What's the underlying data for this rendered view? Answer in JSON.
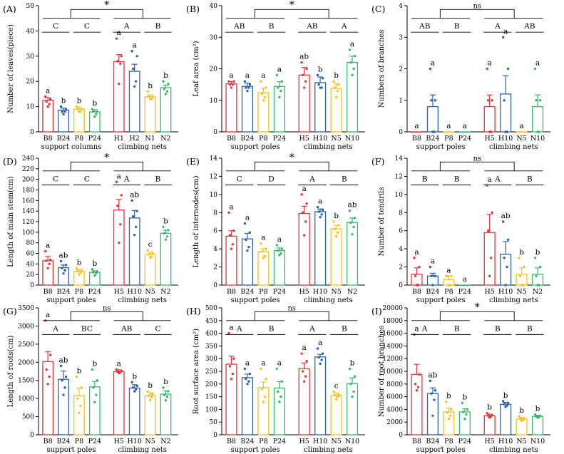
{
  "colors": {
    "red": "#e8343c",
    "blue": "#2f63a8",
    "yellow": "#f5c221",
    "green": "#39b86b"
  },
  "chart_data": [
    {
      "panel": "(A)",
      "type": "bar",
      "ylabel": "Number of leaves(piece)",
      "ylim": [
        0,
        50
      ],
      "yticks": [
        0,
        10,
        20,
        30,
        40,
        50
      ],
      "categories": [
        "B8",
        "B24",
        "P8",
        "P24",
        "H1",
        "H2",
        "N1",
        "N2"
      ],
      "values": [
        12.5,
        8.6,
        9.0,
        7.9,
        27.8,
        24.0,
        13.9,
        17.5
      ],
      "errors": [
        1.0,
        0.8,
        0.8,
        0.9,
        2.8,
        2.8,
        0.8,
        1.0
      ],
      "points": [
        [
          14,
          13,
          12,
          11,
          10
        ],
        [
          10,
          9,
          8,
          8,
          7
        ],
        [
          10,
          9,
          9,
          8,
          8
        ],
        [
          9,
          8,
          8,
          7,
          6
        ],
        [
          37,
          30,
          28,
          27,
          19
        ],
        [
          32,
          30,
          25,
          20,
          18
        ],
        [
          16,
          14,
          14,
          13,
          13
        ],
        [
          20,
          19,
          17,
          16,
          15
        ]
      ],
      "letters": [
        "a",
        "b",
        "b",
        "b",
        "a",
        "a",
        "b",
        "b"
      ],
      "groups": [
        "support columns",
        "climbing nets"
      ],
      "group_letters": [
        "C",
        "C",
        "A",
        "B"
      ],
      "sig": "*"
    },
    {
      "panel": "(B)",
      "type": "bar",
      "ylabel": "Leaf area (cm²)",
      "ylim": [
        0,
        40
      ],
      "yticks": [
        0,
        10,
        20,
        30,
        40
      ],
      "categories": [
        "B8",
        "B24",
        "P8",
        "P24",
        "H5",
        "H10",
        "N5",
        "N10"
      ],
      "values": [
        15.2,
        14.4,
        12.4,
        14.4,
        18.0,
        15.6,
        13.8,
        22.0
      ],
      "errors": [
        0.7,
        1.0,
        1.4,
        1.5,
        2.4,
        1.8,
        1.5,
        2.0
      ],
      "points": [
        [
          16,
          16,
          15,
          15,
          14
        ],
        [
          16,
          15,
          14,
          14,
          13
        ],
        [
          16,
          14,
          12,
          11,
          10
        ],
        [
          18,
          16,
          14,
          13,
          11
        ],
        [
          22,
          20,
          18,
          16,
          14
        ],
        [
          18,
          17,
          15,
          14,
          14
        ],
        [
          16,
          15,
          14,
          13,
          11
        ],
        [
          26,
          24,
          22,
          20,
          18
        ]
      ],
      "letters": [
        "a",
        "a",
        "a",
        "a",
        "ab",
        "b",
        "b",
        "a"
      ],
      "groups": [
        "support poles",
        "climbing nets"
      ],
      "group_letters": [
        "AB",
        "B",
        "AB",
        "A"
      ],
      "sig": "*"
    },
    {
      "panel": "(C)",
      "type": "bar",
      "ylabel": "Numbers of branches",
      "ylim": [
        0,
        4
      ],
      "yticks": [
        0,
        1,
        2,
        3,
        4
      ],
      "categories": [
        "B8",
        "B24",
        "P8",
        "P24",
        "H5",
        "H10",
        "N5",
        "N10"
      ],
      "values": [
        0,
        0.8,
        0,
        0,
        0.8,
        1.2,
        0,
        0.8
      ],
      "errors": [
        0,
        0.37,
        0,
        0,
        0.37,
        0.58,
        0,
        0.37
      ],
      "points": [
        [],
        [
          2,
          1,
          1,
          0,
          0
        ],
        [],
        [],
        [
          2,
          1,
          1,
          0,
          0
        ],
        [
          3,
          2,
          1,
          0,
          0
        ],
        [],
        [
          2,
          1,
          1,
          0,
          0
        ]
      ],
      "letters": [
        "a",
        "a",
        "a",
        "a",
        "a",
        "a",
        "a",
        "a"
      ],
      "groups": [
        "support poles",
        "climbing nets"
      ],
      "group_letters": [
        "AB",
        "B",
        "A",
        "AB"
      ],
      "sig": "ns"
    },
    {
      "panel": "(D)",
      "type": "bar",
      "ylabel": "Length of main stem(cm)",
      "ylim": [
        0,
        240
      ],
      "yticks": [
        0,
        20,
        40,
        60,
        80,
        100,
        120,
        140,
        160,
        180,
        200,
        220,
        240
      ],
      "categories": [
        "B8",
        "B24",
        "P8",
        "P24",
        "H5",
        "H10",
        "N5",
        "N2"
      ],
      "values": [
        46,
        33,
        26,
        24,
        142,
        127,
        58,
        98
      ],
      "errors": [
        8,
        5,
        3,
        3,
        20,
        14,
        4,
        6
      ],
      "points": [
        [
          64,
          48,
          46,
          40,
          32
        ],
        [
          45,
          38,
          32,
          28,
          22
        ],
        [
          32,
          28,
          26,
          24,
          20
        ],
        [
          30,
          26,
          24,
          22,
          18
        ],
        [
          195,
          170,
          150,
          115,
          80
        ],
        [
          160,
          140,
          130,
          110,
          95
        ],
        [
          66,
          60,
          58,
          54,
          52
        ],
        [
          110,
          104,
          98,
          92,
          86
        ]
      ],
      "letters": [
        "a",
        "ab",
        "b",
        "b",
        "a",
        "ab",
        "c",
        "b"
      ],
      "groups": [
        "support poles",
        "climbing nets"
      ],
      "group_letters": [
        "C",
        "C",
        "A",
        "B"
      ],
      "sig": "*"
    },
    {
      "panel": "(E)",
      "type": "bar",
      "ylabel": "Length of internodes(cm)",
      "ylim": [
        0,
        14
      ],
      "yticks": [
        0,
        2,
        4,
        6,
        8,
        10,
        12,
        14
      ],
      "categories": [
        "B8",
        "B24",
        "P8",
        "P24",
        "H5",
        "H10",
        "N5",
        "N2"
      ],
      "values": [
        5.4,
        5.1,
        3.7,
        3.8,
        7.9,
        8.1,
        6.2,
        6.9
      ],
      "errors": [
        0.6,
        0.6,
        0.3,
        0.3,
        0.8,
        0.3,
        0.4,
        0.5
      ],
      "points": [
        [
          8.0,
          6.0,
          5.5,
          4.5,
          4.0
        ],
        [
          6.8,
          5.8,
          5.0,
          4.2,
          3.8
        ],
        [
          4.6,
          4.0,
          3.7,
          3.2,
          3.0
        ],
        [
          4.4,
          4.0,
          3.8,
          3.5,
          3.3
        ],
        [
          10.0,
          9.0,
          8.0,
          7.0,
          5.5
        ],
        [
          8.6,
          8.3,
          8.1,
          7.8,
          7.5
        ],
        [
          7.0,
          6.6,
          6.2,
          5.8,
          5.4
        ],
        [
          8.2,
          7.4,
          6.9,
          6.4,
          5.6
        ]
      ],
      "letters": [
        "a",
        "a",
        "a",
        "a",
        "a",
        "a",
        "b",
        "ab"
      ],
      "groups": [
        "support poles",
        "climbing nets"
      ],
      "group_letters": [
        "C",
        "D",
        "A",
        "B"
      ],
      "sig": "*"
    },
    {
      "panel": "(F)",
      "type": "bar",
      "ylabel": "Number of tendrils",
      "ylim": [
        0,
        14
      ],
      "yticks": [
        0,
        2,
        4,
        6,
        8,
        10,
        12,
        14
      ],
      "categories": [
        "B8",
        "B24",
        "P8",
        "P24",
        "H5",
        "H10",
        "N5",
        "N2"
      ],
      "values": [
        1.2,
        1.0,
        0.6,
        0,
        5.8,
        3.4,
        1.2,
        1.2
      ],
      "errors": [
        0.7,
        0.3,
        0.4,
        0,
        2.0,
        1.4,
        0.7,
        0.7
      ],
      "points": [
        [
          3,
          2,
          1,
          0,
          0
        ],
        [
          2,
          1,
          1,
          1,
          0
        ],
        [
          1,
          1,
          1,
          0,
          0
        ],
        [],
        [
          11,
          8,
          6,
          3,
          1
        ],
        [
          7,
          5,
          3,
          2,
          0
        ],
        [
          3,
          2,
          1,
          0,
          0
        ],
        [
          3,
          2,
          1,
          0,
          0
        ]
      ],
      "letters": [
        "a",
        "a",
        "a",
        "a",
        "a",
        "ab",
        "b",
        "b"
      ],
      "groups": [
        "support poles",
        "climbing nets"
      ],
      "group_letters": [
        "B",
        "B",
        "A",
        "B"
      ],
      "sig": "ns"
    },
    {
      "panel": "(G)",
      "type": "bar",
      "ylabel": "Length of roots(cm)",
      "ylim": [
        0,
        3500
      ],
      "yticks": [
        0,
        500,
        1000,
        1500,
        2000,
        2500,
        3000,
        3500
      ],
      "categories": [
        "B8",
        "B24",
        "P8",
        "P24",
        "H5",
        "H10",
        "N5",
        "N2"
      ],
      "values": [
        2020,
        1530,
        1080,
        1320,
        1740,
        1290,
        1080,
        1120
      ],
      "errors": [
        270,
        230,
        210,
        150,
        50,
        90,
        80,
        90
      ],
      "points": [
        [
          3150,
          2200,
          1800,
          1600,
          1400
        ],
        [
          1900,
          1600,
          1500,
          1300,
          1100
        ],
        [
          1600,
          1300,
          1000,
          800,
          600
        ],
        [
          1800,
          1500,
          1300,
          1100,
          900
        ],
        [
          1800,
          1760,
          1740,
          1720,
          1700
        ],
        [
          1450,
          1350,
          1300,
          1250,
          1200
        ],
        [
          1200,
          1120,
          1080,
          1030,
          950
        ],
        [
          1300,
          1200,
          1100,
          1050,
          950
        ]
      ],
      "letters": [
        "a",
        "ab",
        "b",
        "b",
        "a",
        "b",
        "b",
        "b"
      ],
      "groups": [
        "support poles",
        "climbing nets"
      ],
      "group_letters": [
        "A",
        "BC",
        "AB",
        "C"
      ],
      "sig": "ns"
    },
    {
      "panel": "(H)",
      "type": "bar",
      "ylabel": "Root surface area (cm²)",
      "ylim": [
        0,
        500
      ],
      "yticks": [
        0,
        50,
        100,
        150,
        200,
        250,
        300,
        350,
        400,
        450,
        500
      ],
      "categories": [
        "B8",
        "B24",
        "P8",
        "P24",
        "H5",
        "H10",
        "N5",
        "N10"
      ],
      "values": [
        278,
        225,
        186,
        184,
        260,
        307,
        155,
        202
      ],
      "errors": [
        32,
        14,
        22,
        25,
        23,
        10,
        8,
        22
      ],
      "points": [
        [
          400,
          300,
          270,
          240,
          220
        ],
        [
          260,
          240,
          220,
          210,
          200
        ],
        [
          260,
          220,
          180,
          150,
          130
        ],
        [
          260,
          210,
          170,
          150,
          130
        ],
        [
          320,
          290,
          250,
          230,
          210
        ],
        [
          340,
          320,
          305,
          295,
          280
        ],
        [
          170,
          160,
          155,
          150,
          140
        ],
        [
          260,
          230,
          200,
          170,
          150
        ]
      ],
      "letters": [
        "a",
        "a",
        "a",
        "a",
        "a",
        "a",
        "c",
        "b"
      ],
      "groups": [
        "support poles",
        "climbing nets"
      ],
      "group_letters": [
        "A",
        "B",
        "A",
        "B"
      ],
      "sig": "ns"
    },
    {
      "panel": "(I)",
      "type": "bar",
      "ylabel": "Number of root branches",
      "ylim": [
        0,
        20000
      ],
      "yticks": [
        0,
        2000,
        4000,
        6000,
        8000,
        10000,
        12000,
        14000,
        16000,
        18000,
        20000
      ],
      "categories": [
        "B8",
        "B24",
        "P8",
        "P24",
        "H5",
        "H10",
        "N5",
        "N10"
      ],
      "values": [
        9500,
        6500,
        3600,
        3600,
        3000,
        4800,
        2500,
        2900
      ],
      "errors": [
        1600,
        900,
        600,
        500,
        250,
        300,
        250,
        180
      ],
      "points": [
        [
          15800,
          9500,
          8000,
          7500,
          7000
        ],
        [
          8500,
          7000,
          6500,
          5500,
          3000
        ],
        [
          5200,
          4000,
          3500,
          3000,
          2500
        ],
        [
          5000,
          4000,
          3600,
          3200,
          2500
        ],
        [
          3400,
          3100,
          3000,
          2900,
          2700
        ],
        [
          5300,
          5000,
          4800,
          4600,
          4400
        ],
        [
          2900,
          2600,
          2500,
          2400,
          2200
        ],
        [
          3200,
          3000,
          2900,
          2800,
          2700
        ]
      ],
      "letters": [
        "a",
        "ab",
        "b",
        "b",
        "b",
        "b",
        "b",
        "b"
      ],
      "groups": [
        "support poles",
        "climbing nets"
      ],
      "group_letters": [
        "A",
        "B",
        "B",
        "B"
      ],
      "sig": "*"
    }
  ]
}
